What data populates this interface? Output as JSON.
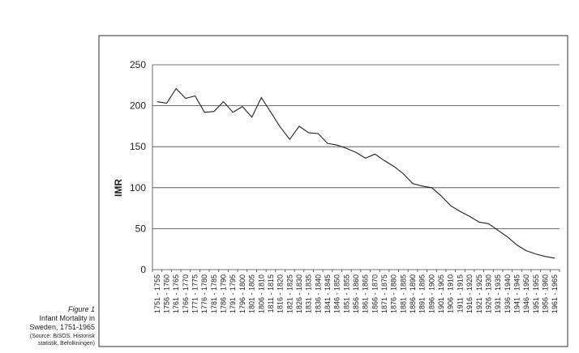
{
  "chart_data": {
    "type": "line",
    "y_label": "IMR",
    "figure_label": "Figure 1",
    "caption": [
      "Infant Mortality in",
      "Sweden, 1751-1965"
    ],
    "source": [
      "(Source: BiSOS. Historisk",
      "statistik, Befolkningen)"
    ],
    "categories": [
      "1751 - 1755",
      "1756 - 1760",
      "1761 - 1765",
      "1766 - 1770",
      "1771 - 1775",
      "1776 - 1780",
      "1781 - 1785",
      "1786 - 1790",
      "1791 - 1795",
      "1796 - 1800",
      "1801 - 1805",
      "1806 - 1810",
      "1811 - 1815",
      "1816 - 1820",
      "1821 - 1825",
      "1826 - 1830",
      "1831 - 1835",
      "1836 - 1840",
      "1841 - 1845",
      "1846 - 1850",
      "1851 - 1855",
      "1856 - 1860",
      "1861 - 1865",
      "1866 - 1870",
      "1871 - 1875",
      "1876 - 1880",
      "1881 - 1885",
      "1886 - 1890",
      "1891 - 1895",
      "1896 - 1900",
      "1901 - 1905",
      "1906 - 1910",
      "1911 - 1915",
      "1916 - 1920",
      "1921 - 1925",
      "1926 - 1930",
      "1931 - 1935",
      "1936 - 1940",
      "1941 - 1945",
      "1946 - 1950",
      "1951 - 1955",
      "1956 - 1960",
      "1961 - 1965"
    ],
    "values": [
      205,
      203,
      221,
      209,
      212,
      192,
      193,
      205,
      192,
      199,
      186,
      210,
      192,
      174,
      159,
      175,
      167,
      166,
      154,
      152,
      148,
      143,
      136,
      141,
      133,
      126,
      117,
      105,
      102,
      100,
      90,
      78,
      71,
      65,
      58,
      56,
      48,
      40,
      30,
      23,
      19,
      16,
      14
    ],
    "color": "#222222",
    "ylim": [
      0,
      250
    ],
    "yticks": [
      0,
      50,
      100,
      150,
      200,
      250
    ],
    "grid": true
  }
}
